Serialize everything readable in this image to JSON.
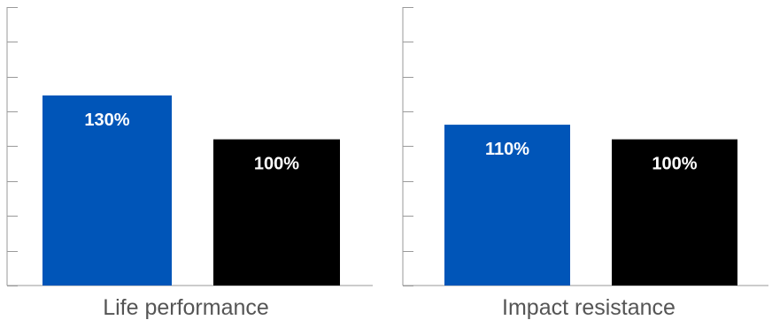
{
  "chart_data": [
    {
      "type": "bar",
      "categories": [
        "Life performance"
      ],
      "series": [
        {
          "color": "#0055b8",
          "values": [
            130
          ],
          "label": "130%"
        },
        {
          "color": "#000000",
          "values": [
            100
          ],
          "label": "100%"
        }
      ],
      "ylim": [
        0,
        200
      ],
      "ytick_count": 8,
      "xlabel": "Life performance",
      "grid": false,
      "legend": "none"
    },
    {
      "type": "bar",
      "categories": [
        "Impact resistance"
      ],
      "series": [
        {
          "color": "#0055b8",
          "values": [
            110
          ],
          "label": "110%"
        },
        {
          "color": "#000000",
          "values": [
            100
          ],
          "label": "100%"
        }
      ],
      "ylim": [
        0,
        200
      ],
      "ytick_count": 8,
      "xlabel": "Impact resistance",
      "grid": false,
      "legend": "none"
    }
  ]
}
